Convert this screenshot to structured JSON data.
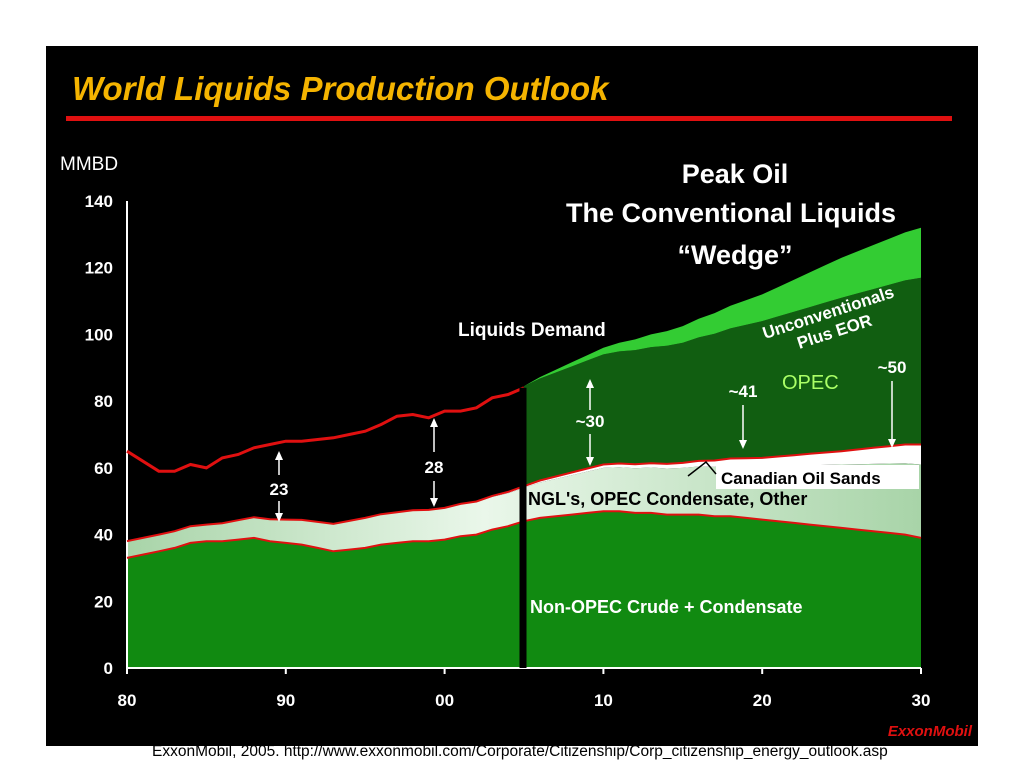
{
  "slide": {
    "title": "World Liquids Production Outlook",
    "source": "ExxonMobil, 2005. http://www.exxonmobil.com/Corporate/Citizenship/Corp_citizenship_energy_outlook.asp",
    "logo_text": "ExxonMobil"
  },
  "chart_data": {
    "type": "area",
    "stacked": true,
    "title": "",
    "subtitle": "",
    "ylabel": "MMBD",
    "xlabel": "",
    "ylim": [
      0,
      140
    ],
    "yticks": [
      0,
      20,
      40,
      60,
      80,
      100,
      120,
      140
    ],
    "xlim": [
      1980,
      2030
    ],
    "xticks": [
      1980,
      1990,
      2000,
      2010,
      2020,
      2030
    ],
    "xtick_labels": [
      "80",
      "90",
      "00",
      "10",
      "20",
      "30"
    ],
    "grid": false,
    "legend": "none",
    "colors": {
      "non_opec": "#118a11",
      "ngl": "#a8d4a8",
      "ngl_light": "#eaf7ea",
      "oil_sands": "#ffffff",
      "opec": "#115e11",
      "unconventionals": "#33cc33",
      "edge": "#e01010",
      "demand": "#e01010"
    },
    "series": [
      {
        "name": "Non-OPEC Crude + Condensate",
        "x": [
          1980,
          1981,
          1982,
          1983,
          1984,
          1985,
          1986,
          1987,
          1988,
          1989,
          1990,
          1991,
          1992,
          1993,
          1994,
          1995,
          1996,
          1997,
          1998,
          1999,
          2000,
          2001,
          2002,
          2003,
          2004,
          2005,
          2006,
          2007,
          2008,
          2009,
          2010,
          2011,
          2012,
          2013,
          2014,
          2015,
          2016,
          2017,
          2018,
          2019,
          2020,
          2021,
          2022,
          2023,
          2024,
          2025,
          2026,
          2027,
          2028,
          2029,
          2030
        ],
        "values": [
          33,
          34,
          35,
          36,
          37.5,
          38,
          38,
          38.5,
          39,
          38,
          37.5,
          37,
          36,
          35,
          35.5,
          36,
          37,
          37.5,
          38,
          38,
          38.5,
          39.5,
          40,
          41.5,
          42.5,
          44,
          45,
          45.5,
          46,
          46.5,
          47,
          47,
          46.5,
          46.5,
          46,
          46,
          46,
          45.5,
          45.5,
          45,
          44.5,
          44,
          43.5,
          43,
          42.5,
          42,
          41.5,
          41,
          40.5,
          40,
          39
        ]
      },
      {
        "name": "NGL's, OPEC Condensate, Other",
        "x": [
          1980,
          1985,
          1990,
          1995,
          2000,
          2005,
          2010,
          2015,
          2020,
          2025,
          2030
        ],
        "values": [
          5,
          5,
          7,
          9,
          9.5,
          10,
          13,
          14,
          16,
          19,
          22
        ]
      },
      {
        "name": "Canadian Oil Sands",
        "x": [
          1980,
          2000,
          2005,
          2010,
          2015,
          2020,
          2025,
          2030
        ],
        "values": [
          0,
          0,
          0.5,
          1,
          1.5,
          2.5,
          4,
          6
        ]
      },
      {
        "name": "OPEC",
        "x": [
          1980,
          1985,
          1990,
          1995,
          2000,
          2005,
          2010,
          2015,
          2020,
          2025,
          2030
        ],
        "values": [
          0,
          0,
          0,
          0,
          0,
          30,
          33,
          36,
          41,
          46,
          50
        ]
      },
      {
        "name": "Unconventionals Plus EOR",
        "x": [
          1980,
          2005,
          2010,
          2015,
          2020,
          2025,
          2030
        ],
        "values": [
          0,
          0,
          2,
          5,
          8,
          12,
          15
        ]
      }
    ],
    "demand": {
      "name": "Liquids Demand",
      "x": [
        1980,
        1981,
        1982,
        1983,
        1984,
        1985,
        1986,
        1987,
        1988,
        1989,
        1990,
        1991,
        1992,
        1993,
        1994,
        1995,
        1996,
        1997,
        1998,
        1999,
        2000,
        2001,
        2002,
        2003,
        2004,
        2005
      ],
      "values": [
        65,
        62,
        59,
        59,
        61,
        60,
        63,
        64,
        66,
        67,
        68,
        68,
        68.5,
        69,
        70,
        71,
        73,
        75.5,
        76,
        75,
        77,
        77,
        78,
        81,
        82,
        84
      ]
    },
    "annotations": {
      "peak_oil_title": [
        "Peak Oil",
        "The Conventional Liquids",
        "“Wedge”"
      ],
      "gap_1990": "23",
      "gap_1999": "28",
      "wedge_2010": "~30",
      "wedge_2020": "~41",
      "wedge_2028": "~50",
      "opec_label": "OPEC",
      "unconventionals_label": [
        "Unconventionals",
        "Plus EOR"
      ]
    },
    "divider_year": 2005
  }
}
